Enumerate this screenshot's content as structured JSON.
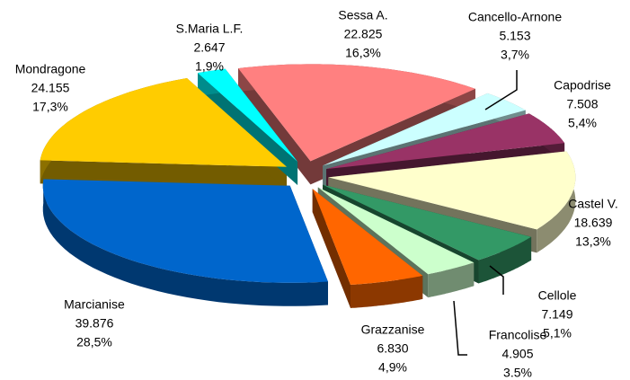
{
  "chart_data": {
    "type": "pie",
    "categories": [
      "Sessa A.",
      "Cancello-Arnone",
      "Capodrise",
      "Castel V.",
      "Cellole",
      "Francolise",
      "Grazzanise",
      "Marcianise",
      "Mondragone",
      "S.Maria L.F."
    ],
    "values": [
      22825,
      5153,
      7508,
      18639,
      7149,
      4905,
      6830,
      39876,
      24155,
      2647
    ],
    "value_labels": [
      "22.825",
      "5.153",
      "7.508",
      "18.639",
      "7.149",
      "4.905",
      "6.830",
      "39.876",
      "24.155",
      "2.647"
    ],
    "percents": [
      16.3,
      3.7,
      5.4,
      13.3,
      5.1,
      3.5,
      4.9,
      28.5,
      17.3,
      1.9
    ],
    "percent_labels": [
      "16,3%",
      "3,7%",
      "5,4%",
      "13,3%",
      "5,1%",
      "3.5%",
      "4,9%",
      "28,5%",
      "17,3%",
      "1,9%"
    ],
    "colors": [
      "#ff8080",
      "#ccffff",
      "#993366",
      "#ffffcc",
      "#339966",
      "#ccffcc",
      "#ff6600",
      "#0066cc",
      "#ffcc00",
      "#00ffff"
    ],
    "exploded": true,
    "three_d": true
  }
}
